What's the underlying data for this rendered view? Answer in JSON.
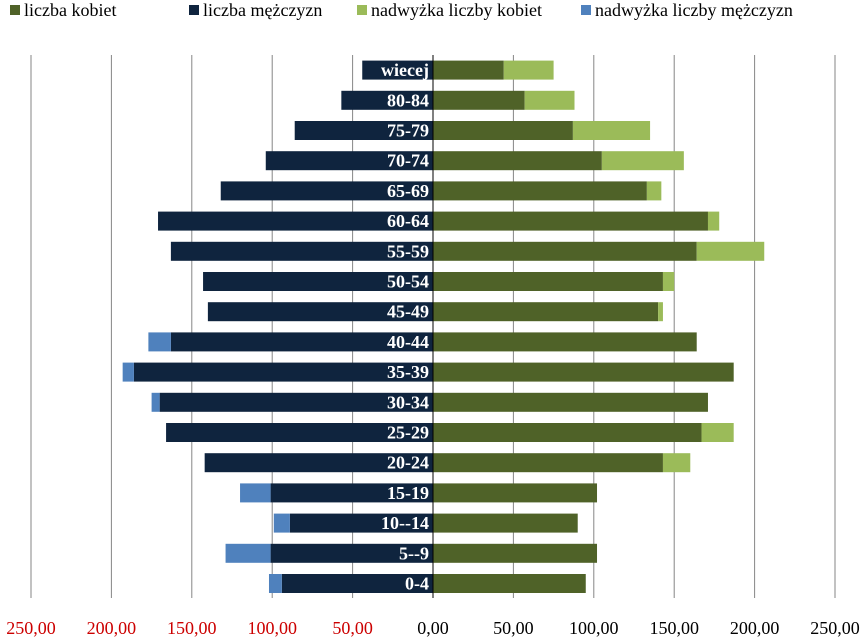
{
  "chart_data": {
    "type": "bar",
    "orientation": "horizontal",
    "subtype": "population-pyramid",
    "categories": [
      "0-4",
      "5--9",
      "10--14",
      "15-19",
      "20-24",
      "25-29",
      "30-34",
      "35-39",
      "40-44",
      "45-49",
      "50-54",
      "55-59",
      "60-64",
      "65-69",
      "70-74",
      "75-79",
      "80-84",
      "wiecej"
    ],
    "series": [
      {
        "name": "liczba kobiet",
        "color": "#4f6228",
        "side": "right",
        "values": [
          95,
          102,
          90,
          102,
          143,
          167,
          171,
          187,
          164,
          140,
          143,
          164,
          171,
          133,
          105,
          87,
          57,
          44
        ]
      },
      {
        "name": "liczba mężczyzn",
        "color": "#0f243e",
        "side": "left",
        "values": [
          94,
          101,
          89,
          101,
          142,
          166,
          170,
          186,
          163,
          140,
          143,
          163,
          171,
          132,
          104,
          86,
          57,
          44
        ]
      },
      {
        "name": "nadwyżka liczby kobiet",
        "color": "#9bbb59",
        "side": "right",
        "values": [
          0,
          0,
          0,
          0,
          17,
          20,
          0,
          0,
          0,
          3,
          7,
          42,
          7,
          9,
          51,
          48,
          31,
          31
        ]
      },
      {
        "name": "nadwyżka liczby mężczyzn",
        "color": "#4f81bd",
        "side": "left",
        "values": [
          8,
          28,
          10,
          19,
          0,
          0,
          5,
          7,
          14,
          0,
          0,
          0,
          0,
          0,
          0,
          0,
          0,
          0
        ]
      }
    ],
    "x_ticks": [
      "250,00",
      "200,00",
      "150,00",
      "100,00",
      "50,00",
      "0,00",
      "50,00",
      "100,00",
      "150,00",
      "200,00",
      "250,00"
    ],
    "x_tick_colors": {
      "left": "#cc0000",
      "right": "#000000"
    },
    "xlim": [
      -250,
      250
    ],
    "grid": true,
    "legend_position": "top"
  }
}
